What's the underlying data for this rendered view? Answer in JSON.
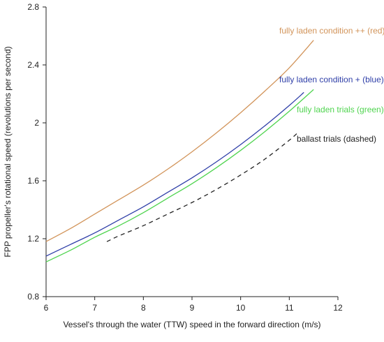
{
  "chart_data": {
    "type": "line",
    "title": "",
    "xlabel": "Vessel's through the water (TTW) speed in the forward direction (m/s)",
    "ylabel": "FPP propeller's rotational speed (revolutions per second)",
    "xlim": [
      6,
      12
    ],
    "ylim": [
      0.8,
      2.8
    ],
    "xticks": [
      6,
      7,
      8,
      9,
      10,
      11,
      12
    ],
    "yticks": [
      0.8,
      1.2,
      1.6,
      2,
      2.4,
      2.8
    ],
    "grid": false,
    "legend": "inline labels",
    "series": [
      {
        "name": "fully laden condition ++ (red)",
        "color": "#d2945a",
        "dash": false,
        "x": [
          6.0,
          6.5,
          7.0,
          7.5,
          8.0,
          8.5,
          9.0,
          9.5,
          10.0,
          10.5,
          11.0,
          11.5
        ],
        "y": [
          1.18,
          1.27,
          1.37,
          1.47,
          1.57,
          1.68,
          1.8,
          1.93,
          2.07,
          2.22,
          2.38,
          2.57
        ]
      },
      {
        "name": "fully laden condition + (blue)",
        "color": "#2f3fa8",
        "dash": false,
        "x": [
          6.0,
          6.5,
          7.0,
          7.5,
          8.0,
          8.5,
          9.0,
          9.5,
          10.0,
          10.5,
          11.0,
          11.3
        ],
        "y": [
          1.08,
          1.16,
          1.24,
          1.33,
          1.42,
          1.52,
          1.62,
          1.73,
          1.85,
          1.98,
          2.12,
          2.21
        ]
      },
      {
        "name": "fully laden trials (green)",
        "color": "#4fd44f",
        "dash": false,
        "x": [
          6.0,
          6.5,
          7.0,
          7.5,
          8.0,
          8.5,
          9.0,
          9.5,
          10.0,
          10.5,
          11.0,
          11.5
        ],
        "y": [
          1.04,
          1.12,
          1.21,
          1.29,
          1.38,
          1.48,
          1.58,
          1.69,
          1.81,
          1.94,
          2.08,
          2.23
        ]
      },
      {
        "name": "ballast trials (dashed)",
        "color": "#222222",
        "dash": true,
        "x": [
          7.25,
          7.5,
          8.0,
          8.5,
          9.0,
          9.5,
          10.0,
          10.5,
          11.0,
          11.2
        ],
        "y": [
          1.18,
          1.22,
          1.29,
          1.37,
          1.45,
          1.54,
          1.64,
          1.75,
          1.88,
          1.94
        ]
      }
    ]
  }
}
